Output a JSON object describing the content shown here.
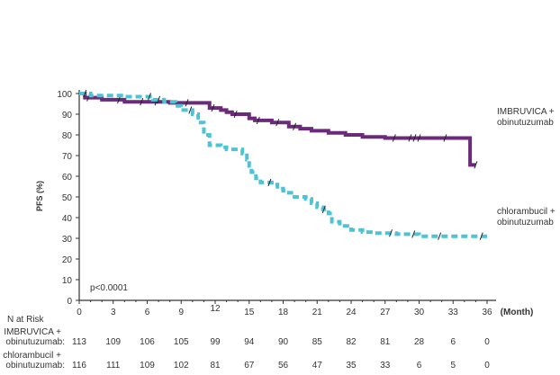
{
  "chart_data": {
    "type": "line",
    "ylabel": "PFS (%)",
    "xlabel_unit": "(Month)",
    "xlim": [
      0,
      36
    ],
    "ylim": [
      0,
      100
    ],
    "xticks": [
      0,
      3,
      6,
      9,
      12,
      15,
      18,
      21,
      24,
      27,
      30,
      33,
      36
    ],
    "yticks": [
      0,
      10,
      20,
      30,
      40,
      50,
      60,
      70,
      80,
      90,
      100
    ],
    "annotation": "p<0.0001",
    "series": [
      {
        "name": "IMBRUVICA + obinutuzumab",
        "legend_lines": [
          "IMBRUVICA +",
          "obinutuzumab"
        ],
        "color": "#6b2a7a",
        "style": "solid",
        "x": [
          0,
          0.5,
          2,
          4,
          8,
          11.5,
          12.5,
          13,
          13.5,
          15,
          15.5,
          17,
          18.5,
          19.5,
          20.5,
          22,
          23.5,
          25,
          27,
          34.5,
          35
        ],
        "y": [
          100,
          98,
          97,
          96,
          95.5,
          93,
          92,
          91,
          90,
          88,
          87,
          86,
          84,
          83,
          82,
          81,
          80,
          79,
          78.5,
          65.5,
          65.5
        ],
        "censor_x": [
          0.8,
          3.5,
          5.5,
          6.8,
          9.5,
          11.8,
          13.8,
          15.8,
          17.5,
          19,
          27.8,
          29.2,
          29.6,
          30,
          32.3,
          35
        ]
      },
      {
        "name": "chlorambucil + obinutuzumab",
        "legend_lines": [
          "chlorambucil +",
          "obinutuzumab"
        ],
        "color": "#4ec3d4",
        "style": "dashed",
        "x": [
          0,
          1,
          4,
          6.5,
          7.5,
          8.5,
          9,
          10,
          10.5,
          11,
          11.5,
          12.5,
          13,
          14.2,
          14.4,
          14.8,
          15,
          15.2,
          15.6,
          16,
          17,
          17.5,
          18,
          18.5,
          19,
          20,
          20.5,
          21,
          21.5,
          22,
          22.3,
          23,
          24,
          25,
          26,
          28,
          30,
          36
        ],
        "y": [
          100,
          99,
          98.5,
          97,
          96,
          94,
          92,
          90,
          86,
          80,
          75,
          74,
          73,
          73,
          71,
          68,
          65,
          62,
          59,
          57,
          56,
          54,
          53,
          52,
          50,
          49,
          47,
          45,
          44,
          42,
          38,
          36,
          34,
          33,
          32.5,
          32,
          31,
          31
        ],
        "censor_x": [
          0.5,
          6.2,
          7,
          9.8,
          16.8,
          21.6,
          27.5,
          29.5,
          31.8,
          35.5
        ]
      }
    ],
    "risk_table": {
      "title": "N at Risk",
      "rows": [
        {
          "label_lines": [
            "IMBRUVICA +",
            "obinutuzumab:"
          ],
          "values": [
            113,
            109,
            106,
            105,
            99,
            94,
            90,
            85,
            82,
            81,
            28,
            6,
            0
          ]
        },
        {
          "label_lines": [
            "chlorambucil +",
            "obinutuzumab:"
          ],
          "values": [
            116,
            111,
            109,
            102,
            81,
            67,
            56,
            47,
            35,
            33,
            6,
            5,
            0
          ]
        }
      ]
    }
  }
}
